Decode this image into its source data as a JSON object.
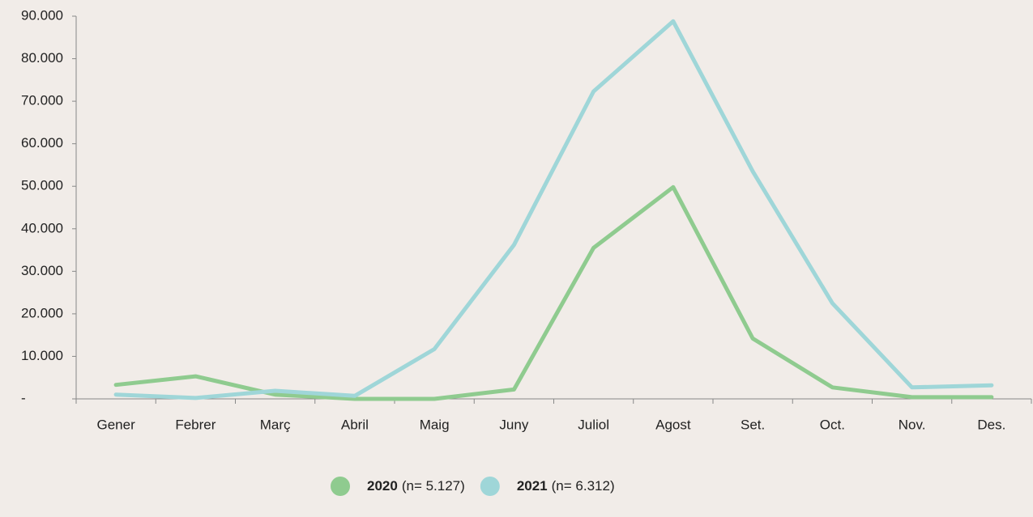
{
  "chart_data": {
    "type": "line",
    "categories": [
      "Gener",
      "Febrer",
      "Març",
      "Abril",
      "Maig",
      "Juny",
      "Juliol",
      "Agost",
      "Set.",
      "Oct.",
      "Nov.",
      "Des."
    ],
    "series": [
      {
        "name": "2020",
        "note": "(n= 5.127)",
        "color": "#8fcb8f",
        "values": [
          3300,
          5300,
          1000,
          0,
          0,
          2200,
          35500,
          49800,
          14200,
          2700,
          400,
          400
        ]
      },
      {
        "name": "2021",
        "note": "(n= 6.312)",
        "color": "#9fd6d8",
        "values": [
          1000,
          200,
          1900,
          700,
          11700,
          36200,
          72300,
          88800,
          53500,
          22500,
          2700,
          3200
        ]
      }
    ],
    "ylim": [
      0,
      90000
    ],
    "yticks": [
      {
        "value": 0,
        "label": "-"
      },
      {
        "value": 10000,
        "label": "10.000"
      },
      {
        "value": 20000,
        "label": "20.000"
      },
      {
        "value": 30000,
        "label": "30.000"
      },
      {
        "value": 40000,
        "label": "40.000"
      },
      {
        "value": 50000,
        "label": "50.000"
      },
      {
        "value": 60000,
        "label": "60.000"
      },
      {
        "value": 70000,
        "label": "70.000"
      },
      {
        "value": 80000,
        "label": "80.000"
      },
      {
        "value": 90000,
        "label": "90.000"
      }
    ],
    "legend": "bottom"
  }
}
